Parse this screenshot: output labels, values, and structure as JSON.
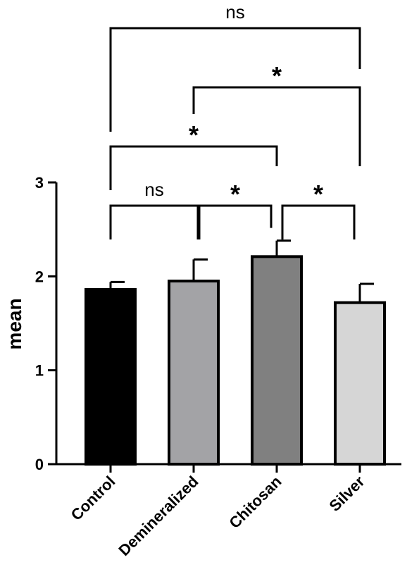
{
  "chart_data": {
    "type": "bar",
    "categories": [
      "Control",
      "Demineralized",
      "Chitosan",
      "Silver"
    ],
    "values": [
      1.86,
      1.95,
      2.21,
      1.72
    ],
    "errors": [
      0.08,
      0.23,
      0.17,
      0.2
    ],
    "colors": [
      "#000000",
      "#a3a3a6",
      "#808080",
      "#d6d6d6"
    ],
    "ylabel": "mean",
    "ylim": [
      0,
      3
    ],
    "yticks": [
      0,
      1,
      2,
      3
    ],
    "grid": false,
    "significance": [
      {
        "from": 0,
        "to": 1,
        "label": "ns",
        "level": 1
      },
      {
        "from": 1,
        "to": 2,
        "label": "*",
        "level": 1
      },
      {
        "from": 2,
        "to": 3,
        "label": "*",
        "level": 1
      },
      {
        "from": 0,
        "to": 2,
        "label": "*",
        "level": 2
      },
      {
        "from": 1,
        "to": 3,
        "label": "*",
        "level": 3
      },
      {
        "from": 0,
        "to": 3,
        "label": "ns",
        "level": 4
      }
    ]
  }
}
